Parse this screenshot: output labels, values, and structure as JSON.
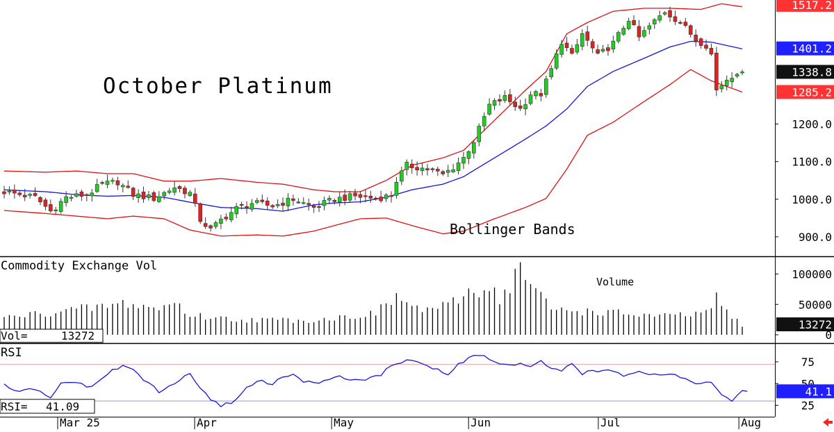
{
  "chart_data": [
    {
      "type": "candlestick",
      "title": "October Platinum",
      "annotation": "Bollinger Bands",
      "ylim": [
        850,
        1530
      ],
      "yticks": [
        {
          "value": 1200,
          "label": "1200.0"
        },
        {
          "value": 1100,
          "label": "1100.0"
        },
        {
          "value": 1000,
          "label": "1000.0"
        },
        {
          "value": 900,
          "label": "900.0"
        }
      ],
      "badges": [
        {
          "value": 1517.2,
          "label": "1517.2",
          "color": "#ff3333"
        },
        {
          "value": 1401.2,
          "label": "1401.2",
          "color": "#1f1fff"
        },
        {
          "value": 1338.8,
          "label": "1338.8",
          "color": "#111111"
        },
        {
          "value": 1285.2,
          "label": "1285.2",
          "color": "#ff3333"
        }
      ],
      "colors": {
        "up": "#22cc22",
        "down": "#dd2222",
        "upper_band": "#dd1111",
        "middle_band": "#1414e0",
        "lower_band": "#dd1111"
      },
      "bands": {
        "upper_anchors": [
          [
            0,
            1075
          ],
          [
            8,
            1072
          ],
          [
            14,
            1075
          ],
          [
            20,
            1068
          ],
          [
            25,
            1068
          ],
          [
            31,
            1048
          ],
          [
            36,
            1048
          ],
          [
            42,
            1055
          ],
          [
            49,
            1045
          ],
          [
            54,
            1040
          ],
          [
            60,
            1025
          ],
          [
            64,
            1020
          ],
          [
            69,
            1020
          ],
          [
            74,
            1050
          ],
          [
            79,
            1090
          ],
          [
            85,
            1110
          ],
          [
            89,
            1130
          ],
          [
            95,
            1210
          ],
          [
            101,
            1290
          ],
          [
            105,
            1340
          ],
          [
            109,
            1440
          ],
          [
            113,
            1470
          ],
          [
            118,
            1500
          ],
          [
            124,
            1508
          ],
          [
            129,
            1508
          ],
          [
            135,
            1505
          ],
          [
            139,
            1520
          ],
          [
            143,
            1512
          ]
        ],
        "middle_anchors": [
          [
            0,
            1025
          ],
          [
            8,
            1020
          ],
          [
            14,
            1012
          ],
          [
            20,
            1008
          ],
          [
            25,
            1010
          ],
          [
            31,
            1005
          ],
          [
            36,
            992
          ],
          [
            42,
            978
          ],
          [
            49,
            975
          ],
          [
            54,
            968
          ],
          [
            60,
            985
          ],
          [
            64,
            990
          ],
          [
            69,
            993
          ],
          [
            74,
            1005
          ],
          [
            79,
            1025
          ],
          [
            85,
            1040
          ],
          [
            89,
            1060
          ],
          [
            95,
            1110
          ],
          [
            101,
            1160
          ],
          [
            105,
            1195
          ],
          [
            109,
            1240
          ],
          [
            113,
            1300
          ],
          [
            118,
            1340
          ],
          [
            124,
            1375
          ],
          [
            129,
            1405
          ],
          [
            133,
            1420
          ],
          [
            137,
            1418
          ],
          [
            143,
            1400
          ]
        ],
        "lower_anchors": [
          [
            0,
            970
          ],
          [
            8,
            962
          ],
          [
            14,
            955
          ],
          [
            20,
            948
          ],
          [
            25,
            955
          ],
          [
            31,
            948
          ],
          [
            36,
            918
          ],
          [
            42,
            902
          ],
          [
            49,
            905
          ],
          [
            54,
            902
          ],
          [
            60,
            915
          ],
          [
            64,
            930
          ],
          [
            69,
            948
          ],
          [
            74,
            950
          ],
          [
            79,
            930
          ],
          [
            85,
            908
          ],
          [
            89,
            915
          ],
          [
            95,
            948
          ],
          [
            101,
            978
          ],
          [
            105,
            1002
          ],
          [
            109,
            1080
          ],
          [
            113,
            1170
          ],
          [
            118,
            1205
          ],
          [
            124,
            1260
          ],
          [
            129,
            1305
          ],
          [
            133,
            1345
          ],
          [
            137,
            1315
          ],
          [
            143,
            1285
          ]
        ]
      },
      "close_anchors": [
        [
          0,
          1020
        ],
        [
          6,
          1005
        ],
        [
          9,
          968
        ],
        [
          12,
          1005
        ],
        [
          16,
          1012
        ],
        [
          19,
          1040
        ],
        [
          22,
          1046
        ],
        [
          25,
          1012
        ],
        [
          29,
          1002
        ],
        [
          33,
          1032
        ],
        [
          36,
          1016
        ],
        [
          38,
          945
        ],
        [
          40,
          918
        ],
        [
          42,
          945
        ],
        [
          45,
          975
        ],
        [
          48,
          990
        ],
        [
          52,
          982
        ],
        [
          56,
          1000
        ],
        [
          60,
          978
        ],
        [
          64,
          1000
        ],
        [
          68,
          1008
        ],
        [
          72,
          1002
        ],
        [
          75,
          1010
        ],
        [
          76,
          1050
        ],
        [
          78,
          1090
        ],
        [
          82,
          1080
        ],
        [
          85,
          1065
        ],
        [
          87,
          1085
        ],
        [
          89,
          1110
        ],
        [
          91,
          1155
        ],
        [
          94,
          1250
        ],
        [
          97,
          1270
        ],
        [
          100,
          1240
        ],
        [
          102,
          1280
        ],
        [
          104,
          1280
        ],
        [
          106,
          1345
        ],
        [
          108,
          1420
        ],
        [
          110,
          1380
        ],
        [
          112,
          1440
        ],
        [
          115,
          1380
        ],
        [
          118,
          1415
        ],
        [
          121,
          1480
        ],
        [
          123,
          1430
        ],
        [
          125,
          1460
        ],
        [
          128,
          1500
        ],
        [
          131,
          1470
        ],
        [
          134,
          1425
        ],
        [
          136,
          1410
        ],
        [
          137,
          1385
        ],
        [
          138,
          1290
        ],
        [
          140,
          1320
        ],
        [
          142,
          1340
        ],
        [
          143,
          1338.8
        ]
      ]
    },
    {
      "type": "bar",
      "title": "Commodity Exchange Vol",
      "annotation": "Volume",
      "readout_label": "Vol=",
      "readout_value": "13272",
      "last_value_label": "13272",
      "ylim": [
        0,
        112000
      ],
      "yticks": [
        {
          "value": 100000,
          "label": "100000"
        },
        {
          "value": 50000,
          "label": "50000"
        },
        {
          "value": 0,
          "label": "0"
        }
      ],
      "volume_anchors": [
        [
          0,
          28000
        ],
        [
          10,
          38000
        ],
        [
          18,
          45000
        ],
        [
          24,
          52000
        ],
        [
          30,
          42000
        ],
        [
          33,
          55000
        ],
        [
          36,
          32000
        ],
        [
          45,
          25000
        ],
        [
          60,
          24000
        ],
        [
          72,
          35000
        ],
        [
          76,
          63000
        ],
        [
          80,
          42000
        ],
        [
          86,
          46000
        ],
        [
          90,
          70000
        ],
        [
          94,
          80000
        ],
        [
          96,
          60000
        ],
        [
          98,
          80000
        ],
        [
          100,
          112000
        ],
        [
          102,
          82000
        ],
        [
          106,
          42000
        ],
        [
          118,
          36000
        ],
        [
          128,
          30000
        ],
        [
          136,
          35000
        ],
        [
          138,
          58000
        ],
        [
          143,
          13272
        ]
      ]
    },
    {
      "type": "line",
      "title": "RSI",
      "readout_label": "RSI=",
      "readout_value": "41.09",
      "last_value_label": "41.1",
      "ylim": [
        15,
        95
      ],
      "yticks": [
        {
          "value": 75,
          "label": "75"
        },
        {
          "value": 50,
          "label": "50"
        },
        {
          "value": 25,
          "label": "25"
        }
      ],
      "reference_lines": [
        72,
        30
      ],
      "rsi_anchors": [
        [
          0,
          48
        ],
        [
          3,
          40
        ],
        [
          6,
          44
        ],
        [
          9,
          32
        ],
        [
          11,
          50
        ],
        [
          14,
          52
        ],
        [
          17,
          45
        ],
        [
          20,
          62
        ],
        [
          23,
          70
        ],
        [
          25,
          66
        ],
        [
          28,
          50
        ],
        [
          30,
          40
        ],
        [
          33,
          50
        ],
        [
          36,
          62
        ],
        [
          38,
          45
        ],
        [
          40,
          30
        ],
        [
          42,
          25
        ],
        [
          44,
          28
        ],
        [
          47,
          45
        ],
        [
          50,
          55
        ],
        [
          52,
          48
        ],
        [
          54,
          58
        ],
        [
          56,
          60
        ],
        [
          58,
          52
        ],
        [
          60,
          50
        ],
        [
          64,
          58
        ],
        [
          67,
          55
        ],
        [
          70,
          55
        ],
        [
          73,
          60
        ],
        [
          75,
          70
        ],
        [
          78,
          78
        ],
        [
          80,
          76
        ],
        [
          82,
          70
        ],
        [
          84,
          65
        ],
        [
          86,
          60
        ],
        [
          88,
          72
        ],
        [
          91,
          83
        ],
        [
          93,
          82
        ],
        [
          95,
          74
        ],
        [
          98,
          70
        ],
        [
          100,
          72
        ],
        [
          102,
          68
        ],
        [
          104,
          78
        ],
        [
          106,
          66
        ],
        [
          108,
          64
        ],
        [
          110,
          72
        ],
        [
          112,
          62
        ],
        [
          115,
          64
        ],
        [
          118,
          66
        ],
        [
          120,
          60
        ],
        [
          123,
          65
        ],
        [
          126,
          60
        ],
        [
          129,
          62
        ],
        [
          132,
          55
        ],
        [
          135,
          50
        ],
        [
          137,
          50
        ],
        [
          139,
          38
        ],
        [
          141,
          30
        ],
        [
          143,
          40
        ],
        [
          144,
          41.09
        ]
      ]
    }
  ],
  "xaxis": {
    "n_bars": 145,
    "months": [
      {
        "label": "Mar 25",
        "bar": 16
      },
      {
        "label": "Apr",
        "bar": 54
      },
      {
        "label": "May",
        "bar": 92
      },
      {
        "label": "Jun",
        "bar": 130
      },
      {
        "label": "Jul",
        "bar": 166
      },
      {
        "label": "Aug",
        "bar": 205
      }
    ]
  },
  "nav": {
    "arrow_color": "#ff2020"
  }
}
